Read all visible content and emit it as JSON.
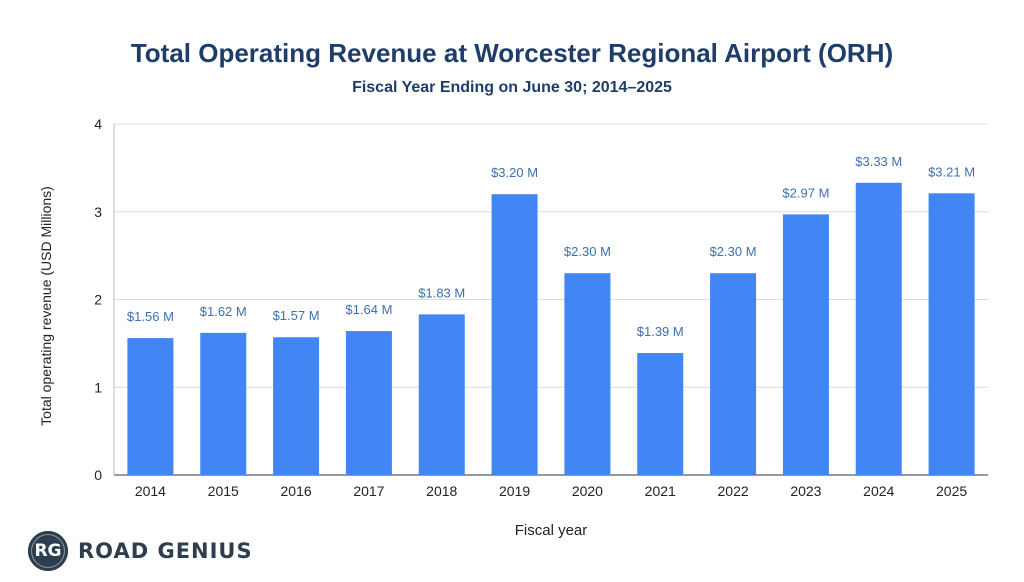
{
  "chart_data": {
    "type": "bar",
    "title": "Total Operating Revenue at Worcester Regional Airport (ORH)",
    "subtitle": "Fiscal Year Ending on June 30; 2014–2025",
    "xlabel": "Fiscal year",
    "ylabel": "Total operating revenue (USD Millions)",
    "ylim": [
      0,
      4
    ],
    "yticks": [
      "0",
      "1",
      "2",
      "3",
      "4"
    ],
    "grid": true,
    "categories": [
      "2014",
      "2015",
      "2016",
      "2017",
      "2018",
      "2019",
      "2020",
      "2021",
      "2022",
      "2023",
      "2024",
      "2025"
    ],
    "values": [
      1.56,
      1.62,
      1.57,
      1.64,
      1.83,
      3.2,
      2.3,
      1.39,
      2.3,
      2.97,
      3.33,
      3.21
    ],
    "data_labels": [
      "$1.56 M",
      "$1.62 M",
      "$1.57 M",
      "$1.64 M",
      "$1.83 M",
      "$3.20 M",
      "$2.30 M",
      "$1.39 M",
      "$2.30 M",
      "$2.97 M",
      "$3.33 M",
      "$3.21 M"
    ],
    "bar_color": "#4285f4",
    "label_color": "#3f6fb0"
  },
  "brand": {
    "badge": "RG",
    "name": "ROAD GENIUS"
  }
}
